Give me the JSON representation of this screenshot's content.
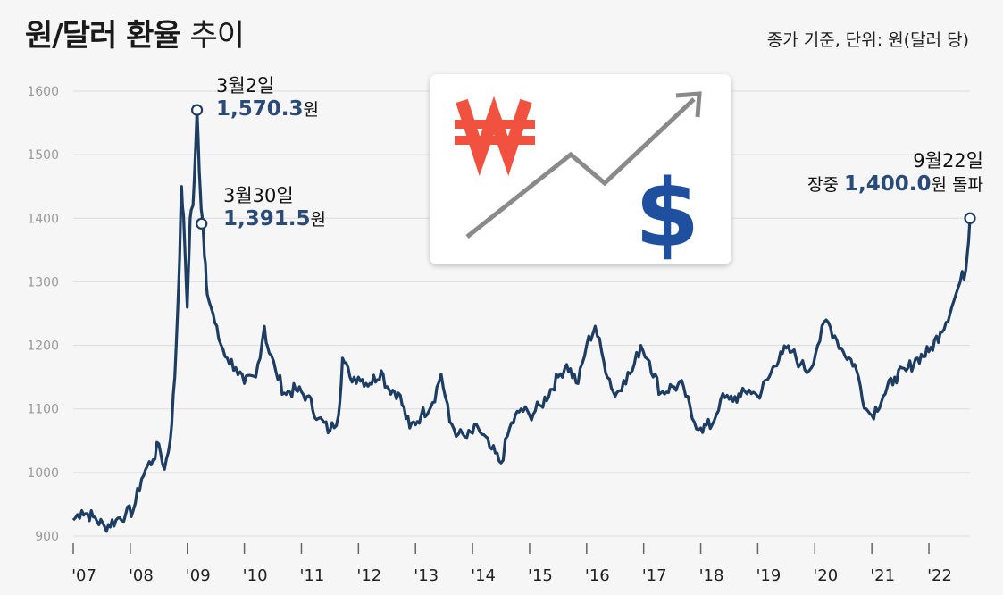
{
  "title_bold": "원/달러 환율",
  "title_light": "추이",
  "unit_note": "종가 기준, 단위: 원(달러 당)",
  "icons": {
    "won": "won-sign-icon",
    "dollar": "dollar-sign-icon",
    "arrow": "trend-up-arrow-icon",
    "won_color": "#f0523f",
    "dollar_color": "#1f4f9f",
    "arrow_color": "#8a8a8a"
  },
  "annotations": {
    "peak": {
      "date": "3월2일",
      "value": "1,570.3",
      "unit": "원"
    },
    "second": {
      "date": "3월30일",
      "value": "1,391.5",
      "unit": "원"
    },
    "latest": {
      "date": "9월22일",
      "prefix": "장중 ",
      "value": "1,400.0",
      "suffix": "원 돌파"
    }
  },
  "chart_data": {
    "type": "line",
    "ylim": [
      900,
      1600
    ],
    "y_ticks": [
      "900",
      "1000",
      "1100",
      "1200",
      "1300",
      "1400",
      "1500",
      "1600"
    ],
    "x_ticks": [
      "'07",
      "'08",
      "'09",
      "'10",
      "'11",
      "'12",
      "'13",
      "'14",
      "'15",
      "'16",
      "'17",
      "'18",
      "'19",
      "'20",
      "'21",
      "'22"
    ],
    "grid": "horizontal",
    "line_color": "#1e3d63",
    "series": [
      {
        "x": [
          2007.0,
          2007.15,
          2007.35,
          2007.55,
          2007.75,
          2007.92,
          2008.05,
          2008.2,
          2008.3,
          2008.4,
          2008.5,
          2008.6,
          2008.7,
          2008.78,
          2008.85,
          2008.9,
          2008.95,
          2009.0,
          2009.05,
          2009.1,
          2009.17,
          2009.23,
          2009.27,
          2009.3,
          2009.35,
          2009.45,
          2009.55,
          2009.7,
          2009.85,
          2010.0,
          2010.2,
          2010.35,
          2010.4,
          2010.55,
          2010.7,
          2010.9,
          2011.1,
          2011.3,
          2011.5,
          2011.65,
          2011.72,
          2011.85,
          2012.0,
          2012.2,
          2012.4,
          2012.5,
          2012.7,
          2012.9,
          2013.1,
          2013.3,
          2013.45,
          2013.6,
          2013.75,
          2013.9,
          2014.1,
          2014.3,
          2014.5,
          2014.65,
          2014.85,
          2015.0,
          2015.2,
          2015.5,
          2015.65,
          2015.85,
          2016.0,
          2016.15,
          2016.3,
          2016.5,
          2016.65,
          2016.8,
          2016.95,
          2017.1,
          2017.3,
          2017.5,
          2017.7,
          2017.85,
          2018.0,
          2018.2,
          2018.35,
          2018.5,
          2018.7,
          2018.85,
          2019.0,
          2019.2,
          2019.4,
          2019.6,
          2019.75,
          2019.9,
          2020.05,
          2020.2,
          2020.35,
          2020.5,
          2020.7,
          2020.9,
          2021.0,
          2021.2,
          2021.4,
          2021.6,
          2021.8,
          2022.0,
          2022.2,
          2022.4,
          2022.55,
          2022.65,
          2022.72
        ],
        "values": [
          925,
          940,
          930,
          915,
          925,
          935,
          940,
          990,
          1010,
          1020,
          1045,
          1005,
          1050,
          1150,
          1300,
          1450,
          1370,
          1260,
          1400,
          1420,
          1570.3,
          1440,
          1391.5,
          1340,
          1280,
          1250,
          1210,
          1180,
          1165,
          1140,
          1150,
          1230,
          1200,
          1160,
          1125,
          1130,
          1120,
          1085,
          1065,
          1090,
          1180,
          1150,
          1150,
          1140,
          1160,
          1135,
          1125,
          1070,
          1090,
          1110,
          1155,
          1080,
          1060,
          1055,
          1070,
          1040,
          1015,
          1070,
          1100,
          1090,
          1105,
          1150,
          1170,
          1140,
          1200,
          1230,
          1175,
          1120,
          1145,
          1160,
          1200,
          1175,
          1125,
          1135,
          1135,
          1085,
          1070,
          1075,
          1115,
          1115,
          1120,
          1130,
          1120,
          1150,
          1190,
          1190,
          1170,
          1160,
          1200,
          1240,
          1215,
          1190,
          1170,
          1100,
          1090,
          1120,
          1150,
          1160,
          1180,
          1190,
          1220,
          1260,
          1300,
          1320,
          1400.0
        ]
      }
    ],
    "highlights": [
      {
        "x": 2009.17,
        "y": 1570.3
      },
      {
        "x": 2009.25,
        "y": 1391.5
      },
      {
        "x": 2022.72,
        "y": 1400.0
      }
    ]
  }
}
